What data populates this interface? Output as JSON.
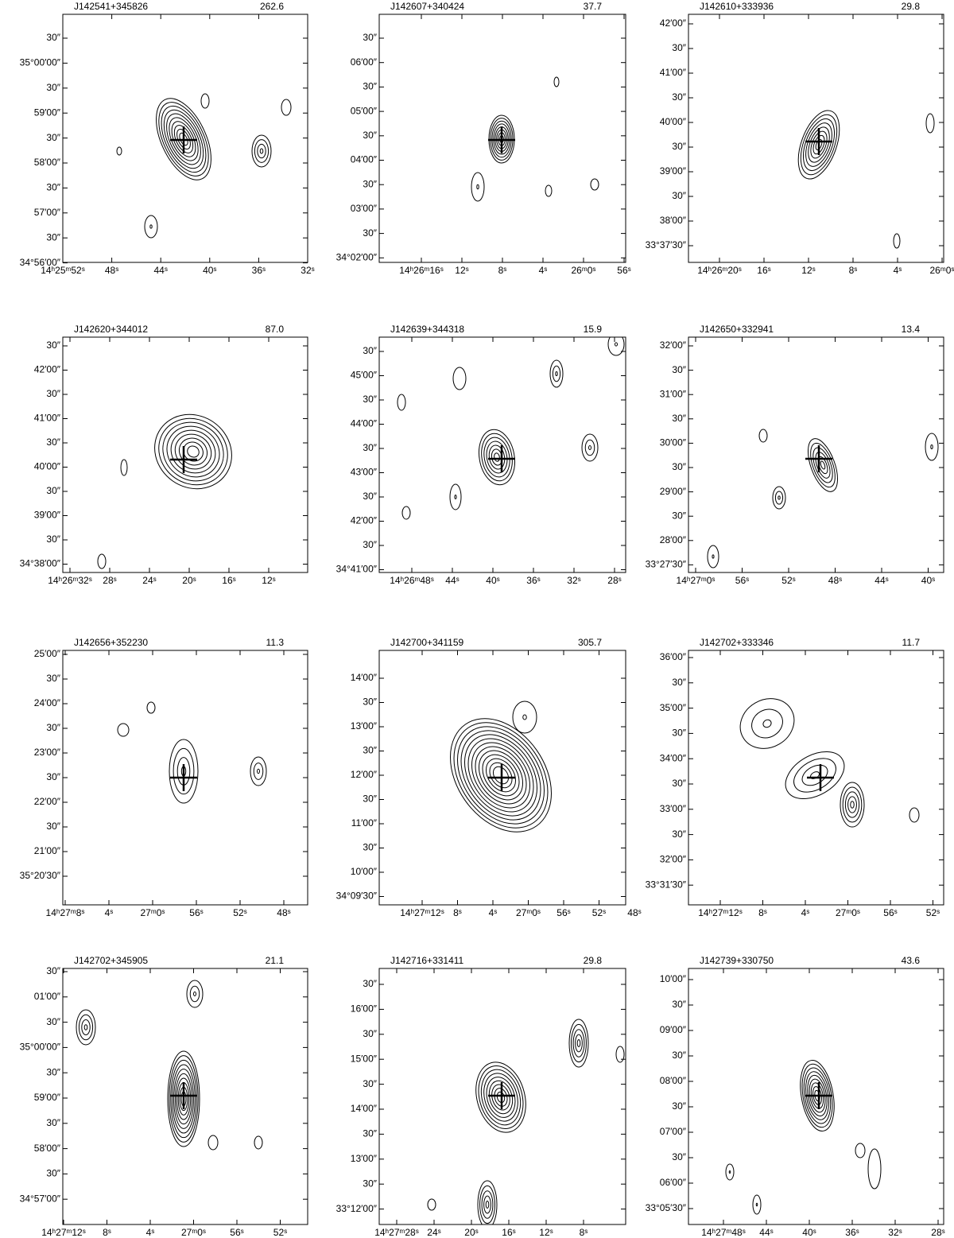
{
  "panels": [
    {
      "name": "J142541+345826",
      "flux": "262.6",
      "yticks": [
        "30″",
        "35°00′00″",
        "30″",
        "59′00″",
        "30″",
        "58′00″",
        "30″",
        "57′00″",
        "30″",
        "34°56′00″"
      ],
      "xticks": [
        "14ʰ25ᵐ52ˢ",
        "48ˢ",
        "44ˢ",
        "40ˢ",
        "36ˢ",
        "32ˢ"
      ]
    },
    {
      "name": "J142607+340424",
      "flux": "37.7",
      "yticks": [
        "30″",
        "06′00″",
        "30″",
        "05′00″",
        "30″",
        "04′00″",
        "30″",
        "03′00″",
        "30″",
        "34°02′00″"
      ],
      "xticks": [
        "14ʰ26ᵐ16ˢ",
        "12ˢ",
        "8ˢ",
        "4ˢ",
        "26ᵐ0ˢ",
        "56ˢ"
      ]
    },
    {
      "name": "J142610+333936",
      "flux": "29.8",
      "yticks": [
        "42′00″",
        "30″",
        "41′00″",
        "30″",
        "40′00″",
        "30″",
        "39′00″",
        "30″",
        "38′00″",
        "33°37′30″"
      ],
      "xticks": [
        "14ʰ26ᵐ20ˢ",
        "16ˢ",
        "12ˢ",
        "8ˢ",
        "4ˢ",
        "26ᵐ0ˢ"
      ]
    },
    {
      "name": "J142620+344012",
      "flux": "87.0",
      "yticks": [
        "30″",
        "42′00″",
        "30″",
        "41′00″",
        "30″",
        "40′00″",
        "30″",
        "39′00″",
        "30″",
        "34°38′00″"
      ],
      "xticks": [
        "14ʰ26ᵐ32ˢ",
        "28ˢ",
        "24ˢ",
        "20ˢ",
        "16ˢ",
        "12ˢ"
      ]
    },
    {
      "name": "J142639+344318",
      "flux": "15.9",
      "yticks": [
        "30″",
        "45′00″",
        "30″",
        "44′00″",
        "30″",
        "43′00″",
        "30″",
        "42′00″",
        "30″",
        "34°41′00″"
      ],
      "xticks": [
        "14ʰ26ᵐ48ˢ",
        "44ˢ",
        "40ˢ",
        "36ˢ",
        "32ˢ",
        "28ˢ"
      ]
    },
    {
      "name": "J142650+332941",
      "flux": "13.4",
      "yticks": [
        "32′00″",
        "30″",
        "31′00″",
        "30″",
        "30′00″",
        "30″",
        "29′00″",
        "30″",
        "28′00″",
        "33°27′30″"
      ],
      "xticks": [
        "14ʰ27ᵐ0ˢ",
        "56ˢ",
        "52ˢ",
        "48ˢ",
        "44ˢ",
        "40ˢ"
      ]
    },
    {
      "name": "J142656+352230",
      "flux": "11.3",
      "yticks": [
        "25′00″",
        "30″",
        "24′00″",
        "30″",
        "23′00″",
        "30″",
        "22′00″",
        "30″",
        "21′00″",
        "35°20′30″"
      ],
      "xticks": [
        "14ʰ27ᵐ8ˢ",
        "4ˢ",
        "27ᵐ0ˢ",
        "56ˢ",
        "52ˢ",
        "48ˢ"
      ]
    },
    {
      "name": "J142700+341159",
      "flux": "305.7",
      "yticks": [
        "14′00″",
        "30″",
        "13′00″",
        "30″",
        "12′00″",
        "30″",
        "11′00″",
        "30″",
        "10′00″",
        "34°09′30″"
      ],
      "xticks": [
        "14ʰ27ᵐ12ˢ",
        "8ˢ",
        "4ˢ",
        "27ᵐ0ˢ",
        "56ˢ",
        "52ˢ",
        "48ˢ"
      ]
    },
    {
      "name": "J142702+333346",
      "flux": "11.7",
      "yticks": [
        "36′00″",
        "30″",
        "35′00″",
        "30″",
        "34′00″",
        "30″",
        "33′00″",
        "30″",
        "32′00″",
        "33°31′30″"
      ],
      "xticks": [
        "14ʰ27ᵐ12ˢ",
        "8ˢ",
        "4ˢ",
        "27ᵐ0ˢ",
        "56ˢ",
        "52ˢ"
      ]
    },
    {
      "name": "J142702+345905",
      "flux": "21.1",
      "yticks": [
        "30″",
        "01′00″",
        "30″",
        "35°00′00″",
        "30″",
        "59′00″",
        "30″",
        "58′00″",
        "30″",
        "34°57′00″"
      ],
      "xticks": [
        "14ʰ27ᵐ12ˢ",
        "8ˢ",
        "4ˢ",
        "27ᵐ0ˢ",
        "56ˢ",
        "52ˢ"
      ]
    },
    {
      "name": "J142716+331411",
      "flux": "29.8",
      "yticks": [
        "30″",
        "16′00″",
        "30″",
        "15′00″",
        "30″",
        "14′00″",
        "30″",
        "13′00″",
        "30″",
        "33°12′00″"
      ],
      "xticks": [
        "14ʰ27ᵐ28ˢ",
        "24ˢ",
        "20ˢ",
        "16ˢ",
        "12ˢ",
        "8ˢ"
      ]
    },
    {
      "name": "J142739+330750",
      "flux": "43.6",
      "yticks": [
        "10′00″",
        "30″",
        "09′00″",
        "30″",
        "08′00″",
        "30″",
        "07′00″",
        "30″",
        "06′00″",
        "33°05′30″"
      ],
      "xticks": [
        "14ʰ27ᵐ48ˢ",
        "44ˢ",
        "40ˢ",
        "36ˢ",
        "32ˢ",
        "28ˢ"
      ]
    }
  ]
}
